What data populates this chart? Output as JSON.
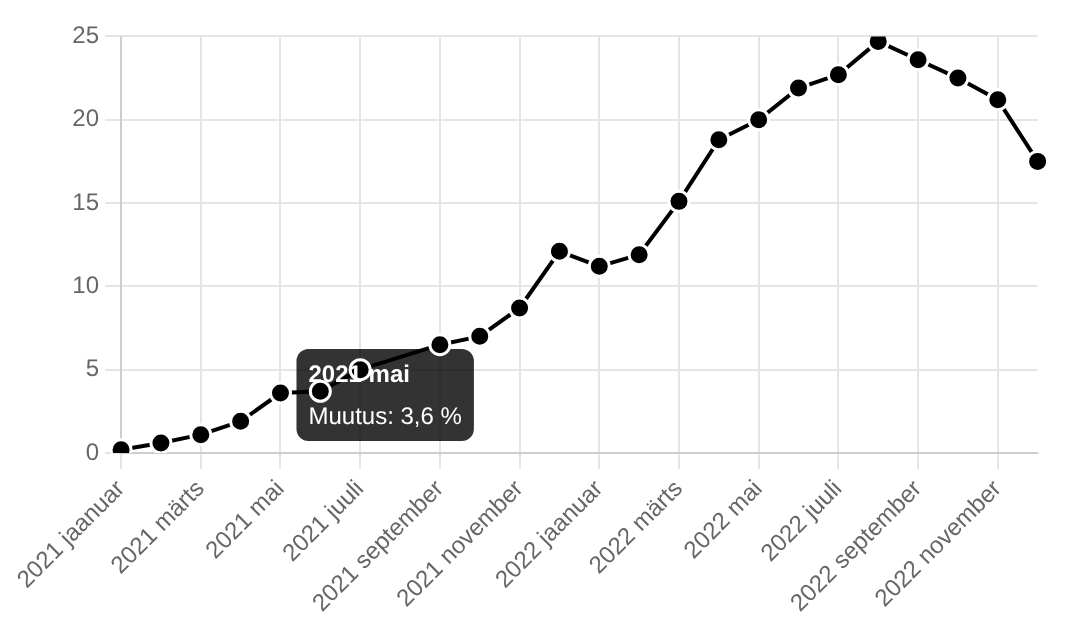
{
  "chart_data": {
    "type": "line",
    "categories": [
      "2021 jaanuar",
      null,
      "2021 märts",
      null,
      "2021 mai",
      null,
      "2021 juuli",
      null,
      "2021 september",
      null,
      "2021 november",
      null,
      "2022 jaanuar",
      null,
      "2022 märts",
      null,
      "2022 mai",
      null,
      "2022 juuli",
      null,
      "2022 september",
      null,
      "2022 november",
      null
    ],
    "series": [
      {
        "color": "#000000",
        "values": [
          0.2,
          0.6,
          1.1,
          1.9,
          3.6,
          3.7,
          5.0,
          null,
          6.5,
          7.0,
          8.7,
          12.1,
          11.2,
          11.9,
          15.1,
          18.8,
          20.0,
          21.9,
          22.7,
          24.7,
          23.6,
          22.5,
          21.2,
          17.5
        ]
      }
    ],
    "ylim": [
      0,
      25
    ],
    "yticks": [
      0,
      5,
      10,
      15,
      20,
      25
    ],
    "grid": true,
    "legend": false,
    "marker": "circle",
    "line_style": "solid",
    "annotations": [
      {
        "text": "2021 mai",
        "x": "2021 mai",
        "y": 3.6
      },
      {
        "text": "Muutus: 3,6 %",
        "x": "2021 mai",
        "y": 3.6
      }
    ]
  }
}
